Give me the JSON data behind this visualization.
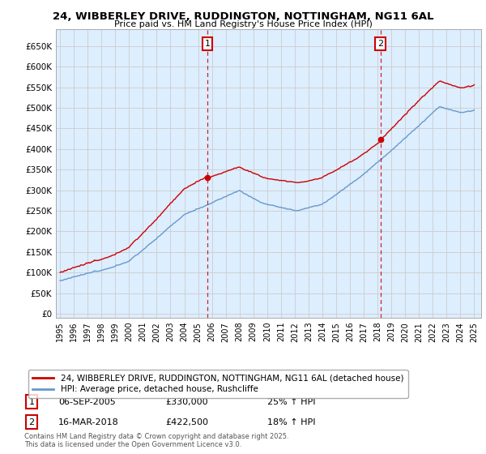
{
  "title": "24, WIBBERLEY DRIVE, RUDDINGTON, NOTTINGHAM, NG11 6AL",
  "subtitle": "Price paid vs. HM Land Registry's House Price Index (HPI)",
  "yticks": [
    0,
    50000,
    100000,
    150000,
    200000,
    250000,
    300000,
    350000,
    400000,
    450000,
    500000,
    550000,
    600000,
    650000
  ],
  "ytick_labels": [
    "£0",
    "£50K",
    "£100K",
    "£150K",
    "£200K",
    "£250K",
    "£300K",
    "£350K",
    "£400K",
    "£450K",
    "£500K",
    "£550K",
    "£600K",
    "£650K"
  ],
  "ylim": [
    -10000,
    690000
  ],
  "xlim_start": 1994.7,
  "xlim_end": 2025.5,
  "xticks": [
    1995,
    1996,
    1997,
    1998,
    1999,
    2000,
    2001,
    2002,
    2003,
    2004,
    2005,
    2006,
    2007,
    2008,
    2009,
    2010,
    2011,
    2012,
    2013,
    2014,
    2015,
    2016,
    2017,
    2018,
    2019,
    2020,
    2021,
    2022,
    2023,
    2024,
    2025
  ],
  "sale1_date": 2005.68,
  "sale1_price": 330000,
  "sale2_date": 2018.21,
  "sale2_price": 422500,
  "legend_line1": "24, WIBBERLEY DRIVE, RUDDINGTON, NOTTINGHAM, NG11 6AL (detached house)",
  "legend_line2": "HPI: Average price, detached house, Rushcliffe",
  "sale1_date_str": "06-SEP-2005",
  "sale1_price_str": "£330,000",
  "sale1_hpi_str": "25% ↑ HPI",
  "sale2_date_str": "16-MAR-2018",
  "sale2_price_str": "£422,500",
  "sale2_hpi_str": "18% ↑ HPI",
  "footer": "Contains HM Land Registry data © Crown copyright and database right 2025.\nThis data is licensed under the Open Government Licence v3.0.",
  "line_color_red": "#cc0000",
  "line_color_blue": "#6699cc",
  "grid_color": "#cccccc",
  "bg_color": "#ffffff",
  "plot_bg": "#ddeeff"
}
